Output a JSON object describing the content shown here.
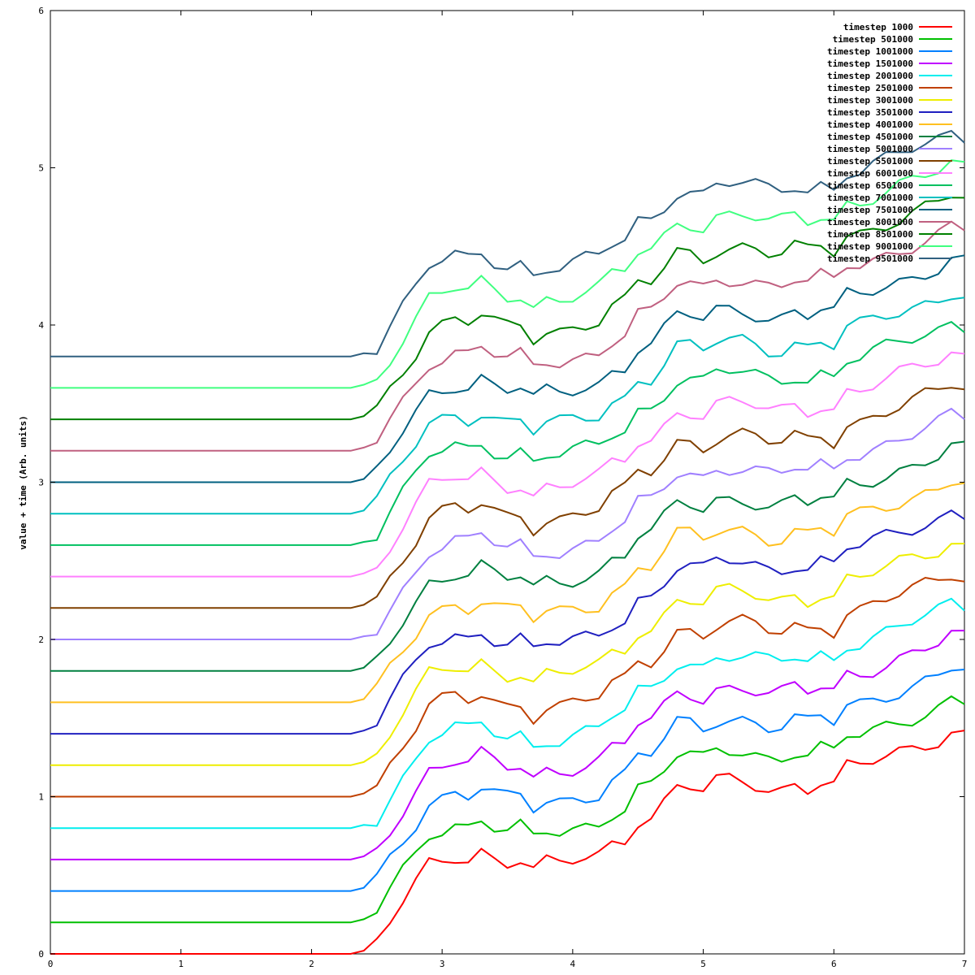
{
  "chart_data": {
    "type": "line",
    "title": "",
    "xlabel": "",
    "ylabel": "value + time (Arb. units)",
    "xlim": [
      0,
      7
    ],
    "ylim": [
      0,
      6
    ],
    "xticks": [
      "0",
      "1",
      "2",
      "3",
      "4",
      "5",
      "6",
      "7"
    ],
    "yticks": [
      "0",
      "1",
      "2",
      "3",
      "4",
      "5",
      "6"
    ],
    "grid": false,
    "legend_position": "top-right",
    "x": [
      0,
      0.1,
      0.2,
      0.3,
      0.4,
      0.5,
      0.6,
      0.7,
      0.8,
      0.9,
      1.0,
      1.1,
      1.2,
      1.3,
      1.4,
      1.5,
      1.6,
      1.7,
      1.8,
      1.9,
      2.0,
      2.1,
      2.2,
      2.3,
      2.4,
      2.5,
      2.6,
      2.7,
      2.8,
      2.9,
      3.0,
      3.1,
      3.2,
      3.3,
      3.4,
      3.5,
      3.6,
      3.7,
      3.8,
      3.9,
      4.0,
      4.1,
      4.2,
      4.3,
      4.4,
      4.5,
      4.6,
      4.7,
      4.8,
      4.9,
      5.0,
      5.1,
      5.2,
      5.3,
      5.4,
      5.5,
      5.6,
      5.7,
      5.8,
      5.9,
      6.0,
      6.1,
      6.2,
      6.3,
      6.4,
      6.5,
      6.6,
      6.7,
      6.8,
      6.9,
      7.0
    ],
    "base_profile": [
      0,
      0,
      0,
      0,
      0,
      0,
      0,
      0,
      0,
      0,
      0,
      0,
      0,
      0,
      0,
      0,
      0,
      0,
      0,
      0,
      0,
      0,
      0,
      0,
      0.02,
      0.07,
      0.2,
      0.32,
      0.44,
      0.57,
      0.6,
      0.63,
      0.61,
      0.66,
      0.61,
      0.58,
      0.6,
      0.52,
      0.57,
      0.57,
      0.59,
      0.61,
      0.63,
      0.71,
      0.74,
      0.86,
      0.87,
      0.96,
      1.06,
      1.06,
      1.03,
      1.09,
      1.1,
      1.1,
      1.08,
      1.05,
      1.05,
      1.09,
      1.06,
      1.1,
      1.07,
      1.18,
      1.19,
      1.22,
      1.25,
      1.28,
      1.31,
      1.34,
      1.37,
      1.42,
      1.4
    ],
    "series": [
      {
        "name": "timestep 1000",
        "color": "#ff0000",
        "offset": 0.0
      },
      {
        "name": "timestep 501000",
        "color": "#00c000",
        "offset": 0.2
      },
      {
        "name": "timestep 1001000",
        "color": "#0080ff",
        "offset": 0.4
      },
      {
        "name": "timestep 1501000",
        "color": "#c000ff",
        "offset": 0.6
      },
      {
        "name": "timestep 2001000",
        "color": "#00eeee",
        "offset": 0.8
      },
      {
        "name": "timestep 2501000",
        "color": "#c04000",
        "offset": 1.0
      },
      {
        "name": "timestep 3001000",
        "color": "#eeee00",
        "offset": 1.2
      },
      {
        "name": "timestep 3501000",
        "color": "#2020c0",
        "offset": 1.4
      },
      {
        "name": "timestep 4001000",
        "color": "#ffc020",
        "offset": 1.6
      },
      {
        "name": "timestep 4501000",
        "color": "#008040",
        "offset": 1.8
      },
      {
        "name": "timestep 5001000",
        "color": "#a080ff",
        "offset": 2.0
      },
      {
        "name": "timestep 5501000",
        "color": "#804000",
        "offset": 2.2
      },
      {
        "name": "timestep 6001000",
        "color": "#ff80ff",
        "offset": 2.4
      },
      {
        "name": "timestep 6501000",
        "color": "#00c060",
        "offset": 2.6
      },
      {
        "name": "timestep 7001000",
        "color": "#00c0c0",
        "offset": 2.8
      },
      {
        "name": "timestep 7501000",
        "color": "#006080",
        "offset": 3.0
      },
      {
        "name": "timestep 8001000",
        "color": "#c06080",
        "offset": 3.2
      },
      {
        "name": "timestep 8501000",
        "color": "#008000",
        "offset": 3.4
      },
      {
        "name": "timestep 9001000",
        "color": "#40ff80",
        "offset": 3.6
      },
      {
        "name": "timestep 9501000",
        "color": "#306080",
        "offset": 3.8
      }
    ]
  }
}
